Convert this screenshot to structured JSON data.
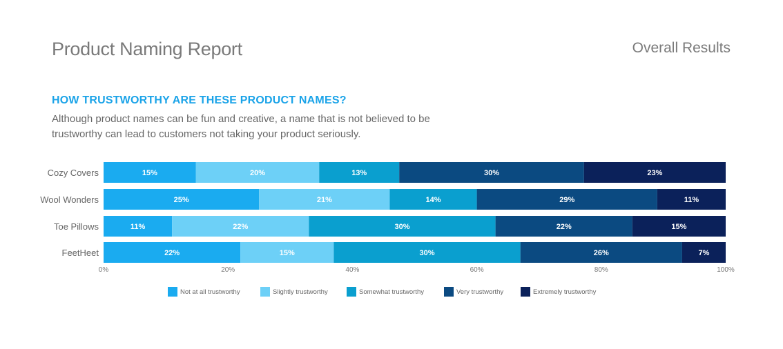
{
  "header": {
    "title": "Product Naming Report",
    "subtitle": "Overall Results"
  },
  "question": "HOW TRUSTWORTHY ARE THESE PRODUCT NAMES?",
  "description": "Although product names can be fun and creative, a name that is not believed to be trustworthy can lead to customers not taking your product seriously.",
  "chart_data": {
    "type": "bar",
    "orientation": "horizontal-stacked-100",
    "categories": [
      "Cozy Covers",
      "Wool Wonders",
      "Toe Pillows",
      "FeetHeet"
    ],
    "series": [
      {
        "name": "Not at all trustworthy",
        "color": "#1aabf0",
        "values": [
          15,
          25,
          11,
          22
        ]
      },
      {
        "name": "Slightly trustworthy",
        "color": "#6dd0f7",
        "values": [
          20,
          21,
          22,
          15
        ]
      },
      {
        "name": "Somewhat trustworthy",
        "color": "#0a9fcf",
        "values": [
          13,
          14,
          30,
          30
        ]
      },
      {
        "name": "Very trustworthy",
        "color": "#0b4a81",
        "values": [
          30,
          29,
          22,
          26
        ]
      },
      {
        "name": "Extremely trustworthy",
        "color": "#0b215a",
        "values": [
          23,
          11,
          15,
          7
        ]
      }
    ],
    "xticks": [
      "0%",
      "20%",
      "40%",
      "60%",
      "80%",
      "100%"
    ],
    "xlim": [
      0,
      100
    ],
    "legend": "bottom"
  }
}
